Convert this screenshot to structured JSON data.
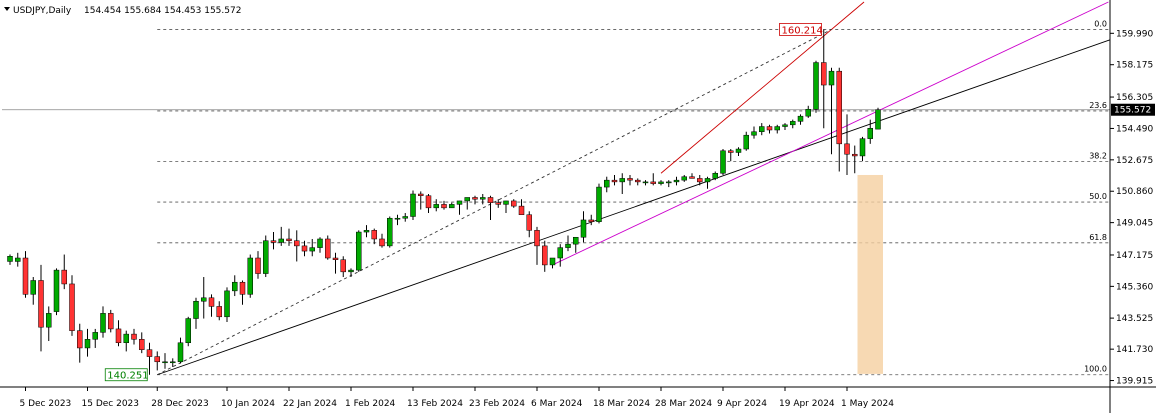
{
  "header": {
    "symbol": "USDJPY,Daily",
    "ohlc": "154.454 155.684 154.453 155.572"
  },
  "colors": {
    "bull": "#00aa00",
    "bear": "#ff3333",
    "wick": "#000000",
    "grid_dash": "#555555",
    "magenta_line": "#cc00cc",
    "red_line": "#cc0000",
    "black_line": "#000000",
    "highlight": "#f5cfa0",
    "price_box": "#000000",
    "high_label": "#cc0000",
    "low_label": "#008000"
  },
  "chart_data": {
    "type": "candlestick",
    "x": [
      "2023-12-01",
      "2023-12-04",
      "2023-12-05",
      "2023-12-06",
      "2023-12-07",
      "2023-12-08",
      "2023-12-11",
      "2023-12-12",
      "2023-12-13",
      "2023-12-14",
      "2023-12-15",
      "2023-12-18",
      "2023-12-19",
      "2023-12-20",
      "2023-12-21",
      "2023-12-22",
      "2023-12-25",
      "2023-12-26",
      "2023-12-27",
      "2023-12-28",
      "2023-12-29",
      "2024-01-01",
      "2024-01-02",
      "2024-01-03",
      "2024-01-04",
      "2024-01-05",
      "2024-01-08",
      "2024-01-09",
      "2024-01-10",
      "2024-01-11",
      "2024-01-12",
      "2024-01-15",
      "2024-01-16",
      "2024-01-17",
      "2024-01-18",
      "2024-01-19",
      "2024-01-22",
      "2024-01-23",
      "2024-01-24",
      "2024-01-25",
      "2024-01-26",
      "2024-01-29",
      "2024-01-30",
      "2024-01-31",
      "2024-02-01",
      "2024-02-02",
      "2024-02-05",
      "2024-02-06",
      "2024-02-07",
      "2024-02-08",
      "2024-02-09",
      "2024-02-12",
      "2024-02-13",
      "2024-02-14",
      "2024-02-15",
      "2024-02-16",
      "2024-02-19",
      "2024-02-20",
      "2024-02-21",
      "2024-02-22",
      "2024-02-23",
      "2024-02-26",
      "2024-02-27",
      "2024-02-28",
      "2024-02-29",
      "2024-03-01",
      "2024-03-04",
      "2024-03-05",
      "2024-03-06",
      "2024-03-07",
      "2024-03-08",
      "2024-03-11",
      "2024-03-12",
      "2024-03-13",
      "2024-03-14",
      "2024-03-15",
      "2024-03-18",
      "2024-03-19",
      "2024-03-20",
      "2024-03-21",
      "2024-03-22",
      "2024-03-25",
      "2024-03-26",
      "2024-03-27",
      "2024-03-28",
      "2024-03-29",
      "2024-04-01",
      "2024-04-02",
      "2024-04-03",
      "2024-04-04",
      "2024-04-05",
      "2024-04-08",
      "2024-04-09",
      "2024-04-10",
      "2024-04-11",
      "2024-04-12",
      "2024-04-15",
      "2024-04-16",
      "2024-04-17",
      "2024-04-18",
      "2024-04-19",
      "2024-04-22",
      "2024-04-23",
      "2024-04-24",
      "2024-04-25",
      "2024-04-26",
      "2024-04-29",
      "2024-04-30",
      "2024-05-01",
      "2024-05-02",
      "2024-05-03",
      "2024-05-06",
      "2024-05-07"
    ],
    "ohlc": [
      [
        146.8,
        147.2,
        146.6,
        147.1
      ],
      [
        146.8,
        147.3,
        146.5,
        147.0
      ],
      [
        147.0,
        147.4,
        144.7,
        144.9
      ],
      [
        144.9,
        145.9,
        144.3,
        145.7
      ],
      [
        145.7,
        146.6,
        141.6,
        143.0
      ],
      [
        143.0,
        144.2,
        142.2,
        143.8
      ],
      [
        143.9,
        146.4,
        143.7,
        146.3
      ],
      [
        146.3,
        147.2,
        145.2,
        145.5
      ],
      [
        145.5,
        146.0,
        142.5,
        142.8
      ],
      [
        142.8,
        143.2,
        140.95,
        141.8
      ],
      [
        141.8,
        142.9,
        141.3,
        142.3
      ],
      [
        142.3,
        142.9,
        141.8,
        142.7
      ],
      [
        142.7,
        144.2,
        142.4,
        143.8
      ],
      [
        143.8,
        144.0,
        142.7,
        142.9
      ],
      [
        142.9,
        143.4,
        141.9,
        142.1
      ],
      [
        142.1,
        142.8,
        141.6,
        142.6
      ],
      [
        142.6,
        142.9,
        142.0,
        142.3
      ],
      [
        142.3,
        142.7,
        141.5,
        141.7
      ],
      [
        141.7,
        142.1,
        140.25,
        141.3
      ],
      [
        141.3,
        141.6,
        140.5,
        141.0
      ],
      [
        141.0,
        141.5,
        140.6,
        141.0
      ],
      [
        141.0,
        141.2,
        140.7,
        141.0
      ],
      [
        141.0,
        142.4,
        140.9,
        142.1
      ],
      [
        142.1,
        143.6,
        141.9,
        143.5
      ],
      [
        143.5,
        144.7,
        142.9,
        144.5
      ],
      [
        144.5,
        145.9,
        143.5,
        144.7
      ],
      [
        144.7,
        144.9,
        143.6,
        144.2
      ],
      [
        144.2,
        144.5,
        143.4,
        143.6
      ],
      [
        143.6,
        145.3,
        143.3,
        145.1
      ],
      [
        145.1,
        146.0,
        144.8,
        145.6
      ],
      [
        145.6,
        145.7,
        144.3,
        144.9
      ],
      [
        144.9,
        147.2,
        144.7,
        147.0
      ],
      [
        147.0,
        147.4,
        145.8,
        146.1
      ],
      [
        146.1,
        148.3,
        145.9,
        148.0
      ],
      [
        148.0,
        148.5,
        147.5,
        147.9
      ],
      [
        147.9,
        148.8,
        147.7,
        148.1
      ],
      [
        148.1,
        148.7,
        147.7,
        148.0
      ],
      [
        148.0,
        148.6,
        146.8,
        147.7
      ],
      [
        147.7,
        148.0,
        147.1,
        147.4
      ],
      [
        147.4,
        148.1,
        147.1,
        147.6
      ],
      [
        147.6,
        148.2,
        147.3,
        148.1
      ],
      [
        148.1,
        148.3,
        146.9,
        147.0
      ],
      [
        147.0,
        147.3,
        146.1,
        146.9
      ],
      [
        146.9,
        147.1,
        145.9,
        146.2
      ],
      [
        146.2,
        146.4,
        145.9,
        146.3
      ],
      [
        146.3,
        148.6,
        146.2,
        148.5
      ],
      [
        148.5,
        148.9,
        148.2,
        148.6
      ],
      [
        148.6,
        148.7,
        147.8,
        148.1
      ],
      [
        148.1,
        148.4,
        147.6,
        147.7
      ],
      [
        147.7,
        149.4,
        147.6,
        149.3
      ],
      [
        149.3,
        149.5,
        148.9,
        149.3
      ],
      [
        149.3,
        149.6,
        149.1,
        149.4
      ],
      [
        149.4,
        150.9,
        149.2,
        150.7
      ],
      [
        150.7,
        150.85,
        149.8,
        150.6
      ],
      [
        150.6,
        150.7,
        149.6,
        149.9
      ],
      [
        149.9,
        150.4,
        149.7,
        150.1
      ],
      [
        150.1,
        150.3,
        149.8,
        149.9
      ],
      [
        149.9,
        150.2,
        149.9,
        150.1
      ],
      [
        150.1,
        150.3,
        149.5,
        150.3
      ],
      [
        150.3,
        150.5,
        149.8,
        150.5
      ],
      [
        150.5,
        150.6,
        150.1,
        150.4
      ],
      [
        150.4,
        150.7,
        150.1,
        150.5
      ],
      [
        150.5,
        150.6,
        149.2,
        150.2
      ],
      [
        150.2,
        150.4,
        149.9,
        150.1
      ],
      [
        150.1,
        150.3,
        149.6,
        150.3
      ],
      [
        150.3,
        150.4,
        149.9,
        150.0
      ],
      [
        150.0,
        150.4,
        149.6,
        149.5
      ],
      [
        149.5,
        149.7,
        148.2,
        148.6
      ],
      [
        148.6,
        148.8,
        146.6,
        147.7
      ],
      [
        147.7,
        148.0,
        146.2,
        146.6
      ],
      [
        146.6,
        146.8,
        146.4,
        147.0
      ],
      [
        147.0,
        147.8,
        146.5,
        147.6
      ],
      [
        147.6,
        148.3,
        147.4,
        147.8
      ],
      [
        147.8,
        148.2,
        147.3,
        148.2
      ],
      [
        148.2,
        149.7,
        147.9,
        149.2
      ],
      [
        149.2,
        149.5,
        148.9,
        149.1
      ],
      [
        149.1,
        151.3,
        149.0,
        151.1
      ],
      [
        151.1,
        151.7,
        150.8,
        151.5
      ],
      [
        151.5,
        151.8,
        151.2,
        151.4
      ],
      [
        151.4,
        151.9,
        150.7,
        151.6
      ],
      [
        151.6,
        151.8,
        151.2,
        151.5
      ],
      [
        151.5,
        151.6,
        151.2,
        151.4
      ],
      [
        151.4,
        151.5,
        151.2,
        151.4
      ],
      [
        151.4,
        151.9,
        151.2,
        151.3
      ],
      [
        151.3,
        151.5,
        151.2,
        151.4
      ],
      [
        151.4,
        151.5,
        151.1,
        151.4
      ],
      [
        151.4,
        151.7,
        151.2,
        151.5
      ],
      [
        151.5,
        151.8,
        151.4,
        151.7
      ],
      [
        151.7,
        151.9,
        151.6,
        151.6
      ],
      [
        151.6,
        151.8,
        151.2,
        151.4
      ],
      [
        151.4,
        151.7,
        151.0,
        151.6
      ],
      [
        151.6,
        152.0,
        151.5,
        151.9
      ],
      [
        151.9,
        153.3,
        151.8,
        153.2
      ],
      [
        153.2,
        153.3,
        152.6,
        153.1
      ],
      [
        153.1,
        153.4,
        152.9,
        153.3
      ],
      [
        153.3,
        154.3,
        153.2,
        154.1
      ],
      [
        154.1,
        154.6,
        153.9,
        154.3
      ],
      [
        154.3,
        154.8,
        154.1,
        154.6
      ],
      [
        154.6,
        154.7,
        154.2,
        154.4
      ],
      [
        154.4,
        154.7,
        154.2,
        154.6
      ],
      [
        154.6,
        154.8,
        154.4,
        154.7
      ],
      [
        154.7,
        155.0,
        154.5,
        154.9
      ],
      [
        154.9,
        155.3,
        154.7,
        155.2
      ],
      [
        155.2,
        155.8,
        155.1,
        155.6
      ],
      [
        155.6,
        158.4,
        155.4,
        158.3
      ],
      [
        158.3,
        160.214,
        154.5,
        157.0
      ],
      [
        157.0,
        158.0,
        153.0,
        157.8
      ],
      [
        157.8,
        158.0,
        152.0,
        153.6
      ],
      [
        153.6,
        155.3,
        151.8,
        153.0
      ],
      [
        153.0,
        153.5,
        151.9,
        152.9
      ],
      [
        152.9,
        154.0,
        152.6,
        153.9
      ],
      [
        153.9,
        155.0,
        153.6,
        154.5
      ],
      [
        154.45,
        155.684,
        154.453,
        155.572
      ]
    ],
    "x_tick_labels": [
      "5 Dec 2023",
      "15 Dec 2023",
      "28 Dec 2023",
      "10 Jan 2024",
      "22 Jan 2024",
      "1 Feb 2024",
      "13 Feb 2024",
      "23 Feb 2024",
      "6 Mar 2024",
      "18 Mar 2024",
      "28 Mar 2024",
      "9 Apr 2024",
      "19 Apr 2024",
      "1 May 2024"
    ],
    "x_tick_dates": [
      "2023-12-05",
      "2023-12-15",
      "2023-12-28",
      "2024-01-10",
      "2024-01-22",
      "2024-02-01",
      "2024-02-13",
      "2024-02-23",
      "2024-03-06",
      "2024-03-18",
      "2024-03-28",
      "2024-04-09",
      "2024-04-19",
      "2024-05-01"
    ],
    "y_tick_labels": [
      "159.990",
      "158.175",
      "156.305",
      "154.490",
      "152.675",
      "150.860",
      "149.045",
      "147.175",
      "145.360",
      "143.525",
      "141.730",
      "139.915"
    ],
    "y_ticks": [
      159.99,
      158.175,
      156.305,
      154.49,
      152.675,
      150.86,
      149.045,
      147.175,
      145.36,
      143.525,
      141.73,
      139.915
    ],
    "ylim": [
      139.6,
      161.8
    ],
    "current_price": 155.572,
    "current_price_label": "155.572",
    "fibonacci": {
      "low": 140.251,
      "high": 160.214,
      "levels": [
        {
          "label": "0.0",
          "value": 160.214
        },
        {
          "label": "23.6",
          "value": 155.502
        },
        {
          "label": "38.2",
          "value": 152.588
        },
        {
          "label": "50.0",
          "value": 150.233
        },
        {
          "label": "61.8",
          "value": 147.877
        },
        {
          "label": "100.0",
          "value": 140.251
        }
      ]
    },
    "annotations": {
      "high_label": "160.214",
      "low_label": "140.251"
    },
    "trendlines": [
      {
        "name": "black",
        "x1": "2023-12-28",
        "y1": 140.25,
        "x2": "2024-05-07",
        "y2": 154.9
      },
      {
        "name": "magenta",
        "x1": "2024-03-08",
        "y1": 146.6,
        "x2": "2024-05-07",
        "y2": 155.5
      },
      {
        "name": "red",
        "x1": "2024-03-28",
        "y1": 151.9,
        "x2": "2024-04-29",
        "y2": 160.214
      },
      {
        "name": "fib-dashed",
        "x1": "2023-12-28",
        "y1": 140.251,
        "x2": "2024-04-29",
        "y2": 160.214
      }
    ],
    "highlight_zone": {
      "x1": "2024-05-03",
      "x2": "2024-05-07",
      "y_top": 151.8,
      "y_bottom": 140.3
    }
  }
}
